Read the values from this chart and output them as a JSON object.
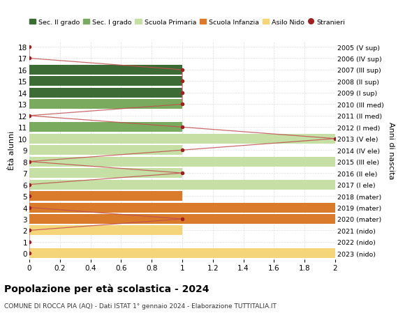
{
  "title": "Popolazione per età scolastica - 2024",
  "subtitle": "COMUNE DI ROCCA PIA (AQ) - Dati ISTAT 1° gennaio 2024 - Elaborazione TUTTITALIA.IT",
  "ylabel_left": "Ètà alunni",
  "ylabel_right": "Anni di nascita",
  "xlim": [
    0,
    2.0
  ],
  "xticks": [
    0,
    0.2,
    0.4,
    0.6,
    0.8,
    1.0,
    1.2,
    1.4,
    1.6,
    1.8,
    2.0
  ],
  "ages": [
    0,
    1,
    2,
    3,
    4,
    5,
    6,
    7,
    8,
    9,
    10,
    11,
    12,
    13,
    14,
    15,
    16,
    17,
    18
  ],
  "years": [
    "2023 (nido)",
    "2022 (nido)",
    "2021 (nido)",
    "2020 (mater)",
    "2019 (mater)",
    "2018 (mater)",
    "2017 (I ele)",
    "2016 (II ele)",
    "2015 (III ele)",
    "2014 (IV ele)",
    "2013 (V ele)",
    "2012 (I med)",
    "2011 (II med)",
    "2010 (III med)",
    "2009 (I sup)",
    "2008 (II sup)",
    "2007 (III sup)",
    "2006 (IV sup)",
    "2005 (V sup)"
  ],
  "bar_values": [
    2.0,
    0.0,
    1.0,
    2.0,
    2.0,
    1.0,
    2.0,
    1.0,
    2.0,
    1.0,
    2.0,
    1.0,
    0.0,
    1.0,
    1.0,
    1.0,
    1.0,
    0.0,
    0.0
  ],
  "stranieri_values": [
    0.0,
    0.0,
    0.0,
    1.0,
    0.0,
    0.0,
    0.0,
    1.0,
    0.0,
    1.0,
    2.0,
    1.0,
    0.0,
    1.0,
    1.0,
    1.0,
    1.0,
    0.0,
    0.0
  ],
  "bar_color_per_age": [
    "#f5d57a",
    "#f5d57a",
    "#f5d57a",
    "#d97b2a",
    "#d97b2a",
    "#d97b2a",
    "#c5dfa5",
    "#c5dfa5",
    "#c5dfa5",
    "#c5dfa5",
    "#c5dfa5",
    "#7aaa5e",
    "#7aaa5e",
    "#7aaa5e",
    "#3d6b35",
    "#3d6b35",
    "#3d6b35",
    "#3d6b35",
    "#3d6b35"
  ],
  "colors": {
    "sec_II": "#3d6b35",
    "sec_I": "#7aaa5e",
    "primaria": "#c5dfa5",
    "infanzia": "#d97b2a",
    "nido": "#f5d57a",
    "stranieri": "#a02020",
    "stranieri_line": "#c05050"
  },
  "background_color": "#ffffff",
  "grid_color": "#e0e0e0",
  "bar_height": 0.85,
  "legend_labels": [
    "Sec. II grado",
    "Sec. I grado",
    "Scuola Primaria",
    "Scuola Infanzia",
    "Asilo Nido",
    "Stranieri"
  ]
}
